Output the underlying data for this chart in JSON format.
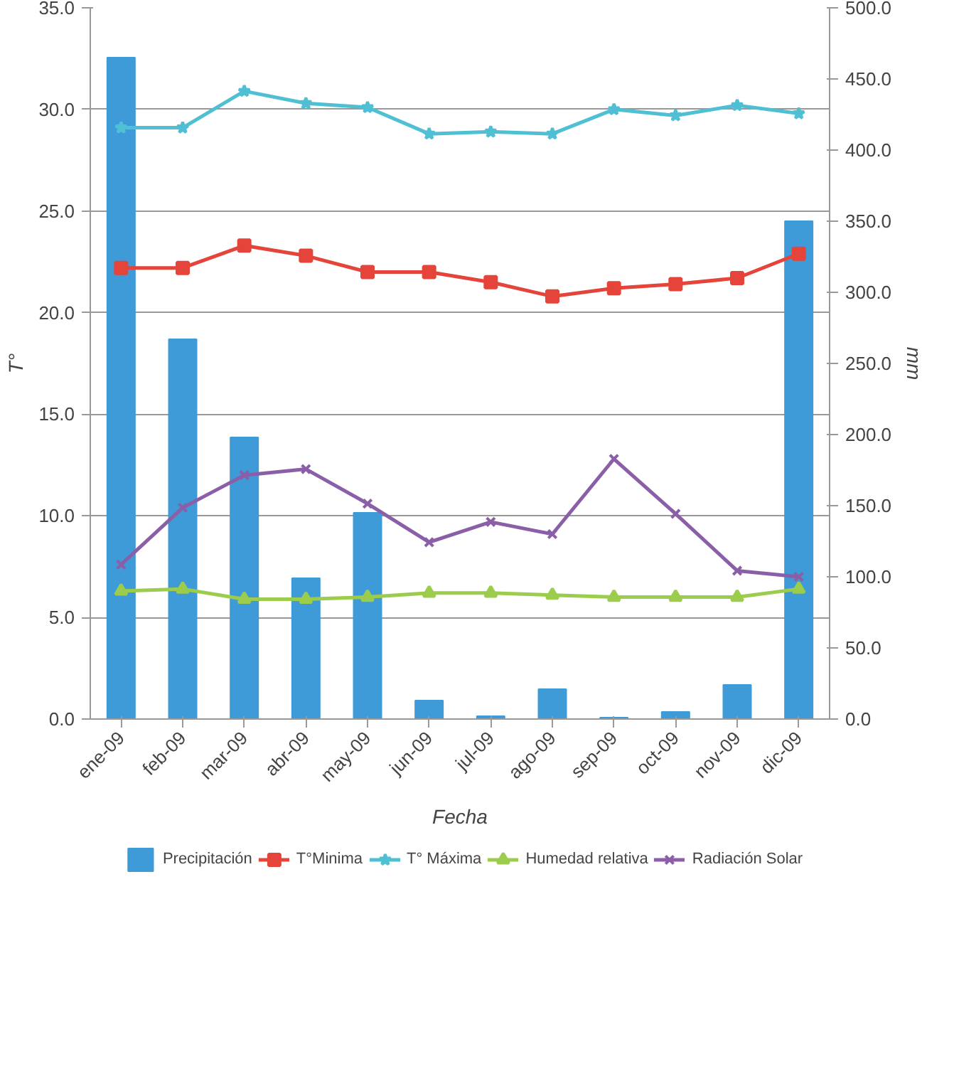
{
  "chart_data": {
    "type": "line",
    "xlabel": "Fecha",
    "ylabel": "T°",
    "y2label": "mm",
    "categories": [
      "ene-09",
      "feb-09",
      "mar-09",
      "abr-09",
      "may-09",
      "jun-09",
      "jul-09",
      "ago-09",
      "sep-09",
      "oct-09",
      "nov-09",
      "dic-09"
    ],
    "ylim": [
      0,
      35
    ],
    "yticks": [
      {
        "value": 0,
        "label": "0.0"
      },
      {
        "value": 5,
        "label": "5.0"
      },
      {
        "value": 10,
        "label": "10.0"
      },
      {
        "value": 15,
        "label": "15.0"
      },
      {
        "value": 20,
        "label": "20.0"
      },
      {
        "value": 25,
        "label": "25.0"
      },
      {
        "value": 30,
        "label": "30.0"
      },
      {
        "value": 35,
        "label": "35.0"
      }
    ],
    "y2lim": [
      0,
      500
    ],
    "y2ticks": [
      {
        "value": 0,
        "label": "0.0"
      },
      {
        "value": 50,
        "label": "50.0"
      },
      {
        "value": 100,
        "label": "100.0"
      },
      {
        "value": 150,
        "label": "150.0"
      },
      {
        "value": 200,
        "label": "200.0"
      },
      {
        "value": 250,
        "label": "250.0"
      },
      {
        "value": 300,
        "label": "300.0"
      },
      {
        "value": 350,
        "label": "350.0"
      },
      {
        "value": 400,
        "label": "400.0"
      },
      {
        "value": 450,
        "label": "450.0"
      },
      {
        "value": 500,
        "label": "500.0"
      }
    ],
    "grid": "y",
    "legend": "bottom",
    "series": [
      {
        "name": "Precipitación",
        "type": "bar",
        "axis": "y2",
        "color": "#3f9ad8",
        "values": [
          465,
          267,
          198,
          99,
          145,
          13,
          2,
          21,
          1,
          5,
          24,
          350
        ]
      },
      {
        "name": "T°Minima",
        "color": "#e5443a",
        "marker": "square",
        "values": [
          22.2,
          22.2,
          23.3,
          22.8,
          22.0,
          22.0,
          21.5,
          20.8,
          21.2,
          21.4,
          21.7,
          22.9
        ]
      },
      {
        "name": "T° Máxima",
        "color": "#4fbfd3",
        "marker": "star",
        "values": [
          29.1,
          29.1,
          30.9,
          30.3,
          30.1,
          28.8,
          28.9,
          28.8,
          30.0,
          29.7,
          30.2,
          29.8
        ]
      },
      {
        "name": "Humedad relativa",
        "color": "#9ccc4c",
        "marker": "triangle",
        "values": [
          6.3,
          6.4,
          5.9,
          5.9,
          6.0,
          6.2,
          6.2,
          6.1,
          6.0,
          6.0,
          6.0,
          6.4
        ]
      },
      {
        "name": "Radiación Solar",
        "color": "#8a5fa8",
        "marker": "cross",
        "values": [
          7.6,
          10.4,
          12.0,
          12.3,
          10.6,
          8.7,
          9.7,
          9.1,
          12.8,
          10.1,
          7.3,
          7.0
        ]
      }
    ]
  }
}
